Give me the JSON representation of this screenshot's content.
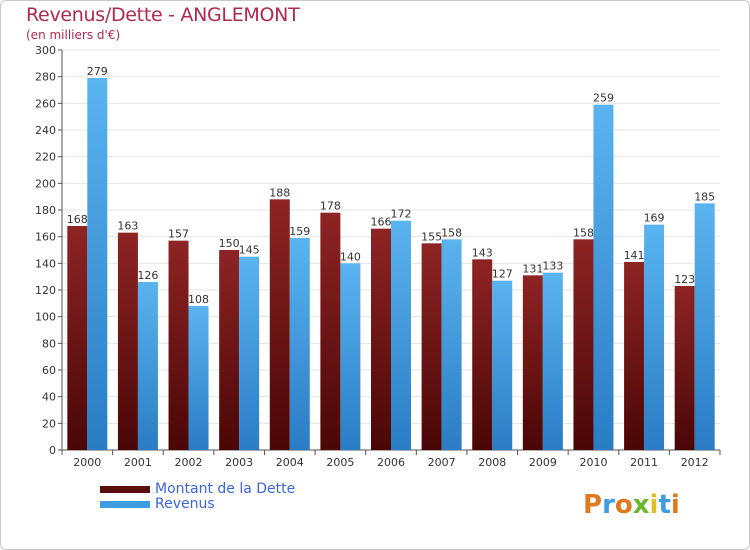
{
  "header": {
    "title": "Revenus/Dette - ANGLEMONT",
    "subtitle": "(en milliers d'€)"
  },
  "colors": {
    "dette": "#8b1a1a",
    "revenus": "#3d9de0",
    "grid": "#e6e6e6",
    "title": "#b12a4e",
    "legend_text": "#3d63e0"
  },
  "legend": {
    "items": [
      {
        "label": "Montant de la Dette",
        "color": "#5c0d0d"
      },
      {
        "label": "Revenus",
        "color": "#3d9de0"
      }
    ]
  },
  "logo": {
    "text": "Proxiti"
  },
  "chart_data": {
    "type": "bar",
    "categories": [
      "2000",
      "2001",
      "2002",
      "2003",
      "2004",
      "2005",
      "2006",
      "2007",
      "2008",
      "2009",
      "2010",
      "2011",
      "2012"
    ],
    "series": [
      {
        "name": "Montant de la Dette",
        "values": [
          168,
          163,
          157,
          150,
          188,
          178,
          166,
          155,
          143,
          131,
          158,
          141,
          123
        ]
      },
      {
        "name": "Revenus",
        "values": [
          279,
          126,
          108,
          145,
          159,
          140,
          172,
          158,
          127,
          133,
          259,
          169,
          185
        ]
      }
    ],
    "title": "Revenus/Dette - ANGLEMONT",
    "ylim": [
      0,
      300
    ],
    "yticks": [
      0,
      20,
      40,
      60,
      80,
      100,
      120,
      140,
      160,
      180,
      200,
      220,
      240,
      260,
      280,
      300
    ],
    "grid": true,
    "legend_position": "bottom-left"
  }
}
